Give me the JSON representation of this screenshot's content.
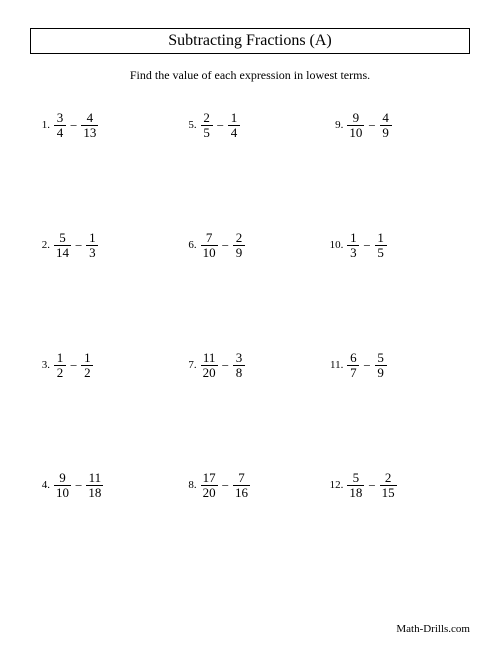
{
  "title": "Subtracting Fractions (A)",
  "subtitle": "Find the value of each expression in lowest terms.",
  "footer": "Math-Drills.com",
  "operator": "−",
  "problems": [
    {
      "n": "1.",
      "a_num": "3",
      "a_den": "4",
      "b_num": "4",
      "b_den": "13"
    },
    {
      "n": "2.",
      "a_num": "5",
      "a_den": "14",
      "b_num": "1",
      "b_den": "3"
    },
    {
      "n": "3.",
      "a_num": "1",
      "a_den": "2",
      "b_num": "1",
      "b_den": "2"
    },
    {
      "n": "4.",
      "a_num": "9",
      "a_den": "10",
      "b_num": "11",
      "b_den": "18"
    },
    {
      "n": "5.",
      "a_num": "2",
      "a_den": "5",
      "b_num": "1",
      "b_den": "4"
    },
    {
      "n": "6.",
      "a_num": "7",
      "a_den": "10",
      "b_num": "2",
      "b_den": "9"
    },
    {
      "n": "7.",
      "a_num": "11",
      "a_den": "20",
      "b_num": "3",
      "b_den": "8"
    },
    {
      "n": "8.",
      "a_num": "17",
      "a_den": "20",
      "b_num": "7",
      "b_den": "16"
    },
    {
      "n": "9.",
      "a_num": "9",
      "a_den": "10",
      "b_num": "4",
      "b_den": "9"
    },
    {
      "n": "10.",
      "a_num": "1",
      "a_den": "3",
      "b_num": "1",
      "b_den": "5"
    },
    {
      "n": "11.",
      "a_num": "6",
      "a_den": "7",
      "b_num": "5",
      "b_den": "9"
    },
    {
      "n": "12.",
      "a_num": "5",
      "a_den": "18",
      "b_num": "2",
      "b_den": "15"
    }
  ],
  "layout_order": [
    0,
    4,
    8,
    1,
    5,
    9,
    2,
    6,
    10,
    3,
    7,
    11
  ]
}
